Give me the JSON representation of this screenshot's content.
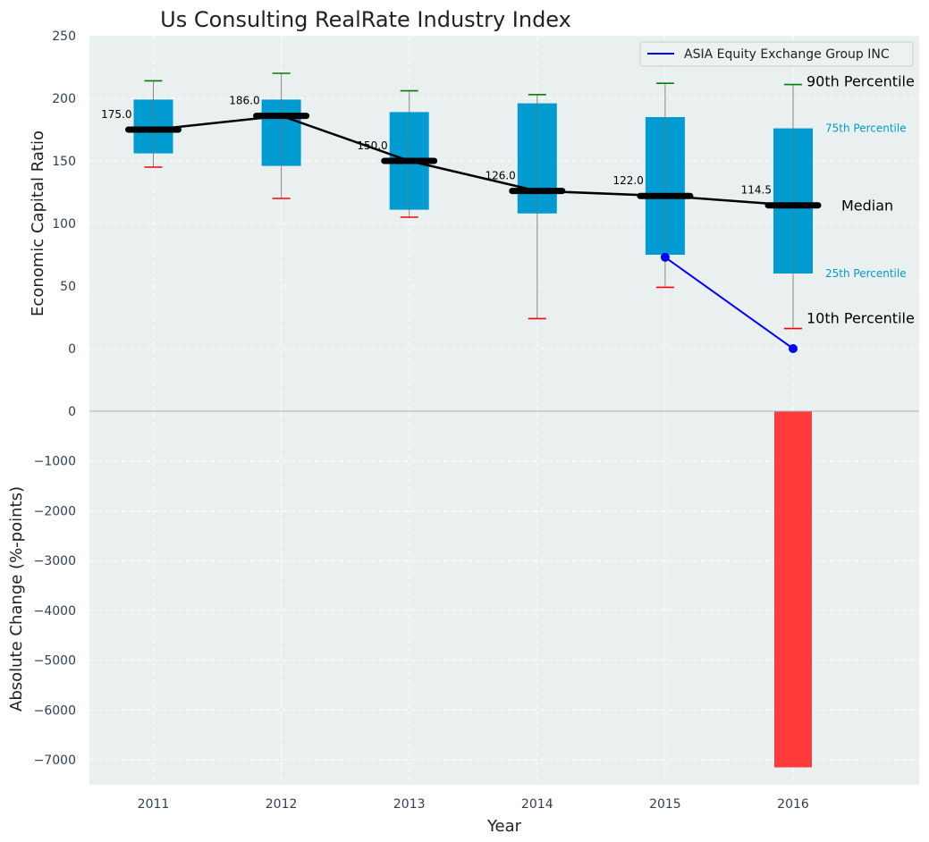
{
  "chart_data": {
    "title": "Us Consulting RealRate Industry Index",
    "type": "box",
    "xlabel": "Year",
    "categories": [
      "2011",
      "2012",
      "2013",
      "2014",
      "2015",
      "2016"
    ],
    "top_panel": {
      "ylabel": "Economic Capital Ratio",
      "ylim": [
        -50,
        250
      ],
      "yticks": [
        "0",
        "50",
        "100",
        "150",
        "200",
        "250"
      ],
      "yticks_values": [
        0,
        50,
        100,
        150,
        200,
        250
      ],
      "grid": true,
      "boxes": [
        {
          "year": "2011",
          "p10": 145,
          "p25": 156,
          "median": 175.0,
          "p75": 199,
          "p90": 214,
          "median_label": "175.0"
        },
        {
          "year": "2012",
          "p10": 120,
          "p25": 146,
          "median": 186.0,
          "p75": 199,
          "p90": 220,
          "median_label": "186.0"
        },
        {
          "year": "2013",
          "p10": 105,
          "p25": 111,
          "median": 150.0,
          "p75": 189,
          "p90": 206,
          "median_label": "150.0"
        },
        {
          "year": "2014",
          "p10": 24,
          "p25": 108,
          "median": 126.0,
          "p75": 196,
          "p90": 203,
          "median_label": "126.0"
        },
        {
          "year": "2015",
          "p10": 49,
          "p25": 75,
          "median": 122.0,
          "p75": 185,
          "p90": 212,
          "median_label": "122.0"
        },
        {
          "year": "2016",
          "p10": 16,
          "p25": 60,
          "median": 114.5,
          "p75": 176,
          "p90": 211,
          "median_label": "114.5"
        }
      ],
      "company_series": {
        "name": "ASIA Equity Exchange Group INC",
        "points": [
          {
            "x": "2015",
            "y": 73
          },
          {
            "x": "2016",
            "y": 0
          }
        ]
      },
      "percentile_labels": {
        "p90": "90th Percentile",
        "p75": "75th Percentile",
        "median": "Median",
        "p25": "25th Percentile",
        "p10": "10th Percentile"
      },
      "legend_position": "top-right"
    },
    "bottom_panel": {
      "ylabel": "Absolute Change (%-points)",
      "ylim": [
        -7500,
        0
      ],
      "yticks": [
        "0",
        "−1000",
        "−2000",
        "−3000",
        "−4000",
        "−5000",
        "−6000",
        "−7000"
      ],
      "yticks_values": [
        0,
        -1000,
        -2000,
        -3000,
        -4000,
        -5000,
        -6000,
        -7000
      ],
      "grid": true,
      "bars": [
        {
          "x": "2016",
          "value": -7150
        }
      ]
    },
    "colors": {
      "box": "#009bd0",
      "median": "#000000",
      "whisker_high": "#008000",
      "whisker_low": "#ff0000",
      "company": "#0000ff",
      "bar": "#ff3b3b",
      "percentile_small_label": "#009bd0"
    }
  }
}
